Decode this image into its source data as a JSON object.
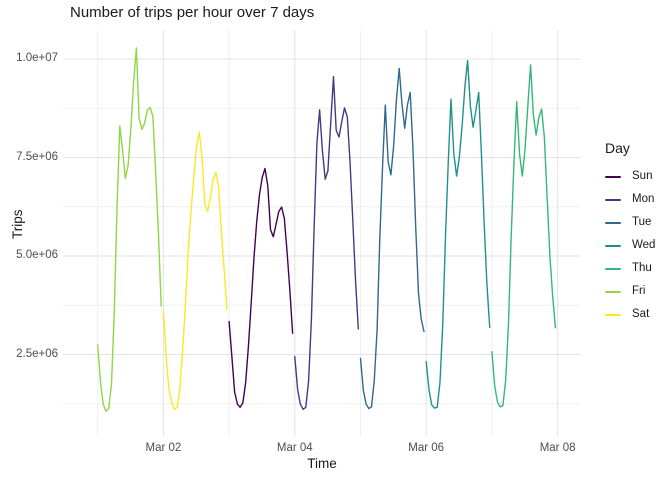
{
  "chart_data": {
    "type": "line",
    "title": "Number of trips per hour over 7 days",
    "xlabel": "Time",
    "ylabel": "Trips",
    "x_unit": "hour of day, 0-23, one line segment per day from Mar 01 to Mar 07",
    "y_unit": "trips per hour",
    "ylim": [
      430000,
      10750000
    ],
    "grid": "major and minor light-gray gridlines on white, no axis lines or ticks",
    "x_ticks": [
      {
        "label": "Mar 02",
        "day_offset": 1
      },
      {
        "label": "Mar 04",
        "day_offset": 3
      },
      {
        "label": "Mar 06",
        "day_offset": 5
      },
      {
        "label": "Mar 08",
        "day_offset": 7
      }
    ],
    "x_minor_day_offsets": [
      0,
      2,
      4,
      6
    ],
    "y_ticks": [
      {
        "label": "1.0e+07",
        "value": 10000000
      },
      {
        "label": "7.5e+06",
        "value": 7500000
      },
      {
        "label": "5.0e+06",
        "value": 5000000
      },
      {
        "label": "2.5e+06",
        "value": 2500000
      }
    ],
    "y_minor_values": [
      8750000,
      6250000,
      3750000,
      1250000
    ],
    "legend": {
      "title": "Day",
      "position": "right"
    },
    "series": [
      {
        "name": "Sun",
        "date": "Mar 03",
        "color": "#440154",
        "values": [
          3340000,
          2440000,
          1550000,
          1240000,
          1160000,
          1280000,
          1800000,
          2700000,
          3810000,
          4930000,
          5870000,
          6560000,
          6990000,
          7220000,
          6780000,
          5670000,
          5490000,
          5800000,
          6130000,
          6240000,
          5960000,
          5100000,
          4150000,
          3040000
        ]
      },
      {
        "name": "Mon",
        "date": "Mar 04",
        "color": "#443A83",
        "values": [
          2450000,
          1620000,
          1240000,
          1110000,
          1160000,
          1830000,
          3380000,
          5700000,
          7860000,
          8710000,
          7680000,
          6950000,
          7160000,
          8370000,
          9550000,
          8190000,
          8020000,
          8400000,
          8760000,
          8530000,
          7400000,
          5900000,
          4400000,
          3150000
        ]
      },
      {
        "name": "Tue",
        "date": "Mar 05",
        "color": "#31688E",
        "values": [
          2400000,
          1600000,
          1250000,
          1130000,
          1170000,
          1850000,
          3130000,
          5450000,
          7300000,
          8830000,
          7400000,
          7060000,
          7780000,
          8960000,
          9760000,
          8880000,
          8240000,
          8830000,
          9150000,
          7700000,
          5740000,
          4050000,
          3400000,
          3080000
        ]
      },
      {
        "name": "Wed",
        "date": "Mar 06",
        "color": "#21908C",
        "values": [
          2320000,
          1600000,
          1220000,
          1140000,
          1160000,
          1800000,
          3300000,
          5500000,
          7400000,
          8980000,
          7600000,
          7030000,
          7500000,
          8300000,
          9300000,
          9960000,
          8800000,
          8270000,
          8700000,
          9150000,
          7600000,
          5800000,
          4300000,
          3190000
        ]
      },
      {
        "name": "Thu",
        "date": "Mar 07",
        "color": "#35B779",
        "values": [
          2570000,
          1700000,
          1300000,
          1170000,
          1200000,
          1850000,
          3300000,
          5500000,
          7400000,
          8920000,
          7600000,
          7030000,
          7700000,
          8800000,
          9850000,
          8600000,
          8070000,
          8500000,
          8730000,
          8000000,
          6500000,
          5000000,
          4000000,
          3180000
        ]
      },
      {
        "name": "Fri",
        "date": "Mar 01",
        "color": "#8FD744",
        "values": [
          2740000,
          1800000,
          1240000,
          1060000,
          1130000,
          1750000,
          3600000,
          6200000,
          8300000,
          7700000,
          6970000,
          7300000,
          8200000,
          9400000,
          10280000,
          8500000,
          8210000,
          8370000,
          8710000,
          8770000,
          8540000,
          7100000,
          5600000,
          3730000
        ]
      },
      {
        "name": "Sat",
        "date": "Mar 02",
        "color": "#FDE725",
        "values": [
          3610000,
          2440000,
          1620000,
          1280000,
          1110000,
          1160000,
          1670000,
          2610000,
          3810000,
          5100000,
          6130000,
          6990000,
          7770000,
          8150000,
          7470000,
          6310000,
          6130000,
          6470000,
          6950000,
          7120000,
          6740000,
          5620000,
          4680000,
          3640000
        ]
      }
    ]
  }
}
